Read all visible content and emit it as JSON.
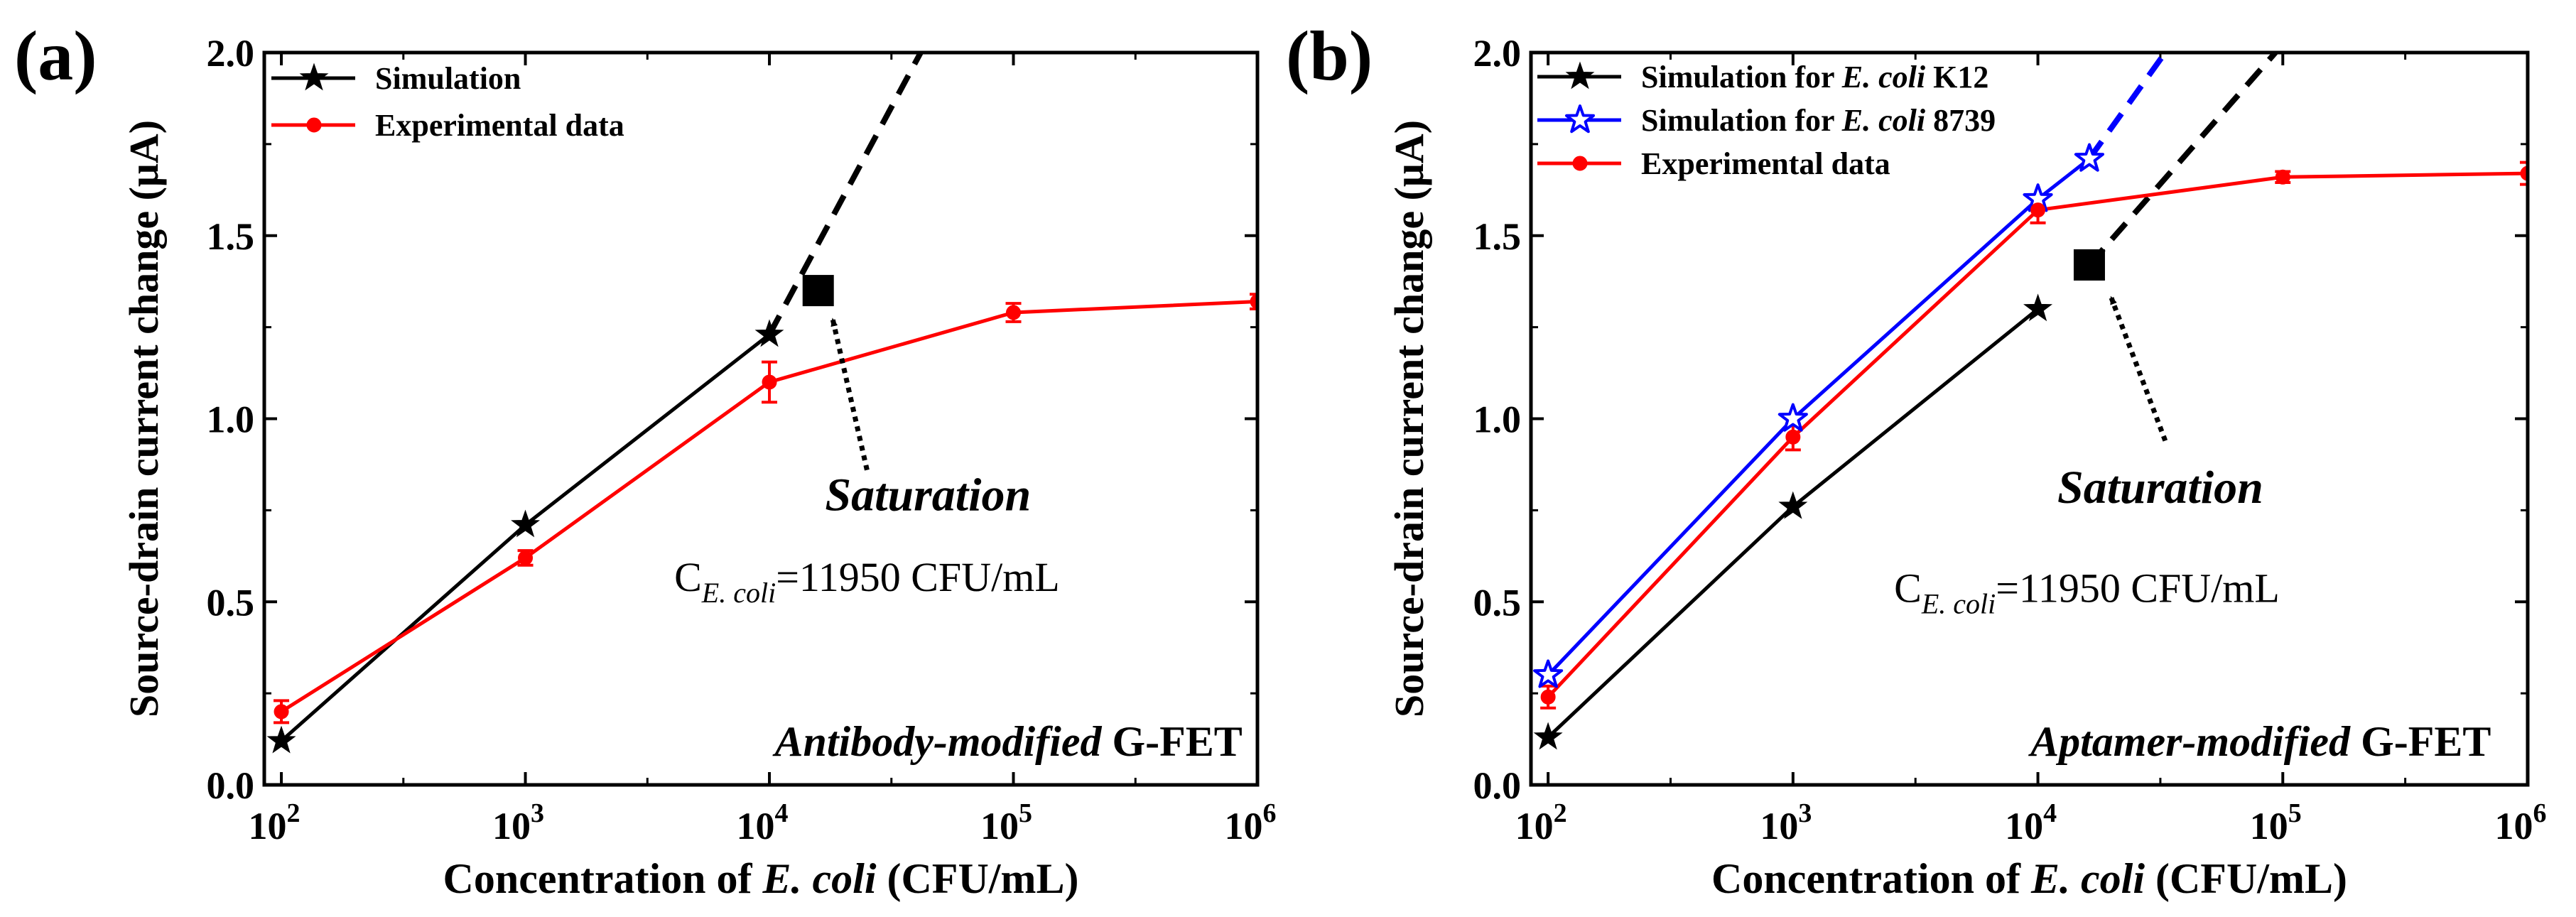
{
  "chart_data": [
    {
      "type": "line",
      "panel_label": "(a)",
      "xscale": "log",
      "xlim_log10": [
        1.93,
        6.0
      ],
      "ylim": [
        0,
        2.0
      ],
      "yticks": [
        0.0,
        0.5,
        1.0,
        1.5,
        2.0
      ],
      "ytick_labels": [
        "0.0",
        "0.5",
        "1.0",
        "1.5",
        "2.0"
      ],
      "xticks_log10": [
        2,
        3,
        4,
        5,
        6
      ],
      "xtick_labels": [
        "10",
        "10",
        "10",
        "10",
        "10"
      ],
      "xtick_exponents": [
        "2",
        "3",
        "4",
        "5",
        "6"
      ],
      "ylabel": "Source-drain current change (μA)",
      "xlabel_parts": [
        "Concentration of ",
        "E. coli",
        " (CFU/mL)"
      ],
      "series": [
        {
          "name": "Simulation",
          "color": "#000000",
          "marker": "star-filled",
          "x_log10": [
            2,
            3,
            4
          ],
          "y": [
            0.12,
            0.71,
            1.23
          ]
        },
        {
          "name": "Experimental data",
          "color": "#ff0000",
          "marker": "circle",
          "x_log10": [
            2,
            3,
            4,
            5,
            6
          ],
          "y": [
            0.2,
            0.62,
            1.1,
            1.29,
            1.32
          ],
          "yerr": [
            0.03,
            0.02,
            0.055,
            0.025,
            0.02
          ]
        }
      ],
      "extensions": [
        {
          "color": "#000000",
          "from_log10": 4.0,
          "from_y": 1.23,
          "to_log10": 4.62,
          "to_y": 2.0
        }
      ],
      "saturation_points": [
        {
          "x_log10": 4.2,
          "y": 1.35,
          "color": "#000000"
        }
      ],
      "annotation": {
        "title": "Saturation",
        "c_prefix": "C",
        "c_sub": "E. coli",
        "c_value": "=11950  CFU/mL",
        "arrow_from": [
          4.4,
          0.86
        ],
        "arrow_to": [
          4.26,
          1.27
        ],
        "title_pos": [
          4.65,
          0.75
        ],
        "c_pos": [
          4.4,
          0.53
        ]
      },
      "device_label": {
        "italic": "Antibody-modified",
        "bold": "G-FET",
        "pos": [
          4.98,
          0.08
        ]
      }
    },
    {
      "type": "line",
      "panel_label": "(b)",
      "xscale": "log",
      "xlim_log10": [
        1.93,
        6.0
      ],
      "ylim": [
        0,
        2.0
      ],
      "yticks": [
        0.0,
        0.5,
        1.0,
        1.5,
        2.0
      ],
      "ytick_labels": [
        "0.0",
        "0.5",
        "1.0",
        "1.5",
        "2.0"
      ],
      "xticks_log10": [
        2,
        3,
        4,
        5,
        6
      ],
      "xtick_labels": [
        "10",
        "10",
        "10",
        "10",
        "10"
      ],
      "xtick_exponents": [
        "2",
        "3",
        "4",
        "5",
        "6"
      ],
      "ylabel": "Source-drain current change (μA)",
      "xlabel_parts": [
        "Concentration of ",
        "E. coli",
        " (CFU/mL)"
      ],
      "series": [
        {
          "name_parts": [
            "Simulation for ",
            "E. coli",
            " K12"
          ],
          "color": "#000000",
          "marker": "star-filled",
          "x_log10": [
            2,
            3,
            4
          ],
          "y": [
            0.13,
            0.76,
            1.3
          ]
        },
        {
          "name_parts": [
            "Simulation for ",
            "E. coli",
            " 8739"
          ],
          "color": "#0000ff",
          "marker": "star-open",
          "x_log10": [
            2,
            3,
            4,
            4.21
          ],
          "y": [
            0.3,
            1.0,
            1.6,
            1.71
          ]
        },
        {
          "name_parts": [
            "Experimental data"
          ],
          "color": "#ff0000",
          "marker": "circle",
          "x_log10": [
            2,
            3,
            4,
            5,
            6
          ],
          "y": [
            0.24,
            0.95,
            1.57,
            1.66,
            1.67
          ],
          "yerr": [
            0.03,
            0.035,
            0.035,
            0.015,
            0.03
          ]
        }
      ],
      "extensions": [
        {
          "color": "#000000",
          "from_log10": 4.21,
          "from_y": 1.42,
          "to_log10": 4.97,
          "to_y": 2.0
        },
        {
          "color": "#0000ff",
          "from_log10": 4.21,
          "from_y": 1.71,
          "to_log10": 4.52,
          "to_y": 2.0
        }
      ],
      "saturation_points": [
        {
          "x_log10": 4.21,
          "y": 1.42,
          "color": "#000000"
        }
      ],
      "annotation": {
        "title": "Saturation",
        "c_prefix": "C",
        "c_sub": "E. coli",
        "c_value": "=11950  CFU/mL",
        "arrow_from": [
          4.52,
          0.94
        ],
        "arrow_to": [
          4.3,
          1.33
        ],
        "title_pos": [
          4.5,
          0.77
        ],
        "c_pos": [
          4.2,
          0.5
        ]
      },
      "device_label": {
        "italic": "Aptamer-modified",
        "bold": "G-FET",
        "pos": [
          4.91,
          0.08
        ]
      }
    }
  ]
}
